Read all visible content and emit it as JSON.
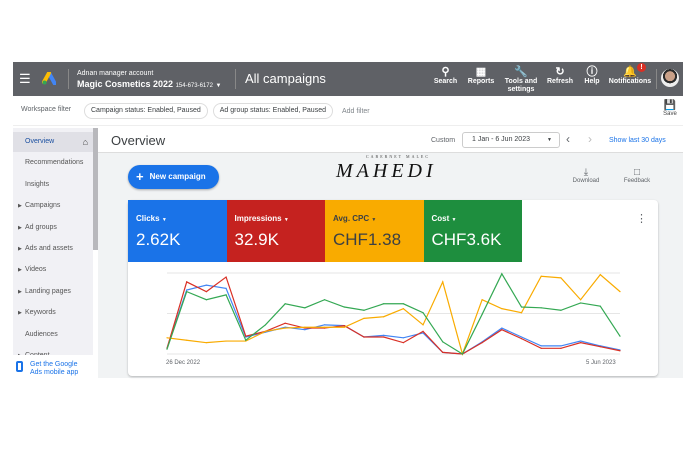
{
  "topbar": {
    "account_label": "Adnan manager account",
    "account_name": "Magic Cosmetics 2022",
    "account_id": "154-673-6172",
    "page_title": "All campaigns",
    "buttons": [
      {
        "label": "Search",
        "icon": "search-icon"
      },
      {
        "label": "Reports",
        "icon": "reports-icon"
      },
      {
        "label": "Tools and settings",
        "icon": "wrench-icon"
      },
      {
        "label": "Refresh",
        "icon": "refresh-icon"
      },
      {
        "label": "Help",
        "icon": "help-icon"
      },
      {
        "label": "Notifications",
        "icon": "bell-icon"
      }
    ],
    "notification_badge": "!"
  },
  "filterbar": {
    "workspace_filter": "Workspace filter",
    "chips": [
      "Campaign status: Enabled, Paused",
      "Ad group status: Enabled, Paused"
    ],
    "add_filter": "Add filter",
    "save": "Save"
  },
  "sidebar": {
    "items": [
      {
        "label": "Overview",
        "active": true
      },
      {
        "label": "Recommendations"
      },
      {
        "label": "Insights"
      },
      {
        "label": "Campaigns",
        "expandable": true
      },
      {
        "label": "Ad groups",
        "expandable": true
      },
      {
        "label": "Ads and assets",
        "expandable": true
      },
      {
        "label": "Videos",
        "expandable": true
      },
      {
        "label": "Landing pages",
        "expandable": true
      },
      {
        "label": "Keywords",
        "expandable": true
      },
      {
        "label": "Audiences"
      },
      {
        "label": "Content",
        "expandable": true
      }
    ],
    "mobile_app": "Get the Google Ads mobile app"
  },
  "overview": {
    "title": "Overview",
    "date_label": "Custom",
    "date_range": "1 Jan - 6 Jun 2023",
    "show_last": "Show last 30 days",
    "new_campaign": "New campaign",
    "download": "Download",
    "feedback": "Feedback",
    "watermark_small": "CABERNET MALEC",
    "watermark": "MAHEDI"
  },
  "metrics": [
    {
      "label": "Clicks",
      "value": "2.62K",
      "color": "#1a73e8"
    },
    {
      "label": "Impressions",
      "value": "32.9K",
      "color": "#c5221f"
    },
    {
      "label": "Avg. CPC",
      "value": "CHF1.38",
      "color": "#f9ab00"
    },
    {
      "label": "Cost",
      "value": "CHF3.6K",
      "color": "#1e8e3e"
    }
  ],
  "chart_data": {
    "type": "line",
    "x_start_label": "26 Dec 2022",
    "x_end_label": "5 Jun 2023",
    "grid": true,
    "series": [
      {
        "name": "Clicks",
        "color": "#4285f4",
        "values": [
          7,
          79,
          85,
          81,
          21,
          27,
          33,
          30,
          36,
          35,
          21,
          23,
          20,
          26,
          2,
          0,
          15,
          32,
          21,
          10,
          10,
          16,
          10,
          5
        ]
      },
      {
        "name": "Impressions",
        "color": "#d93025",
        "values": [
          7,
          89,
          77,
          95,
          22,
          28,
          38,
          32,
          32,
          35,
          21,
          21,
          14,
          28,
          2,
          0,
          14,
          30,
          19,
          7,
          7,
          14,
          9,
          4
        ]
      },
      {
        "name": "Avg. CPC",
        "color": "#f9ab00",
        "values": [
          20,
          17,
          14,
          16,
          16,
          28,
          32,
          33,
          33,
          33,
          44,
          46,
          56,
          36,
          89,
          0,
          67,
          56,
          51,
          96,
          94,
          67,
          98,
          77
        ]
      },
      {
        "name": "Cost",
        "color": "#34a853",
        "values": [
          6,
          77,
          67,
          73,
          17,
          36,
          62,
          57,
          67,
          58,
          54,
          62,
          62,
          51,
          15,
          0,
          49,
          99,
          58,
          57,
          54,
          63,
          59,
          22
        ]
      }
    ]
  }
}
